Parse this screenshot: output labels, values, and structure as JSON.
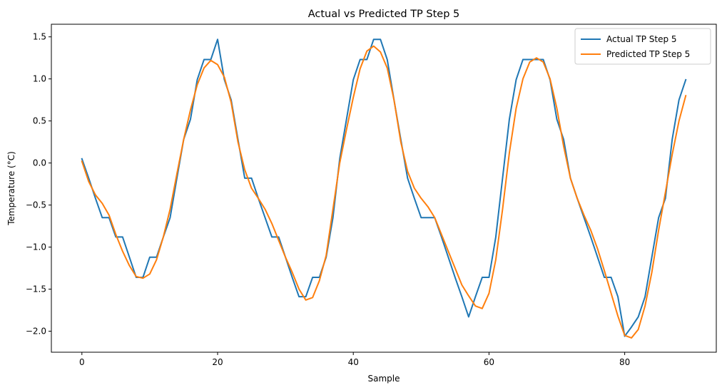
{
  "chart_data": {
    "type": "line",
    "title": "Actual vs Predicted TP Step 5",
    "xlabel": "Sample",
    "ylabel": "Temperature (°C)",
    "xlim": [
      -4.5,
      93.5
    ],
    "ylim": [
      -2.25,
      1.65
    ],
    "xticks": [
      0,
      20,
      40,
      60,
      80
    ],
    "yticks": [
      -2.0,
      -1.5,
      -1.0,
      -0.5,
      0.0,
      0.5,
      1.0,
      1.5
    ],
    "ytick_labels": [
      "−2.0",
      "−1.5",
      "−1.0",
      "−0.5",
      "0.0",
      "0.5",
      "1.0",
      "1.5"
    ],
    "grid": false,
    "legend_position": "top-right",
    "series": [
      {
        "name": "Actual TP Step 5",
        "color": "#1f77b4",
        "values": [
          0.05,
          -0.18,
          -0.42,
          -0.65,
          -0.65,
          -0.88,
          -0.88,
          -1.12,
          -1.36,
          -1.36,
          -1.12,
          -1.12,
          -0.88,
          -0.65,
          -0.18,
          0.28,
          0.52,
          0.99,
          1.23,
          1.23,
          1.47,
          0.99,
          0.75,
          0.28,
          -0.18,
          -0.18,
          -0.42,
          -0.65,
          -0.88,
          -0.88,
          -1.12,
          -1.36,
          -1.59,
          -1.59,
          -1.36,
          -1.36,
          -1.12,
          -0.65,
          0.05,
          0.52,
          0.99,
          1.23,
          1.23,
          1.47,
          1.47,
          1.23,
          0.75,
          0.28,
          -0.18,
          -0.42,
          -0.65,
          -0.65,
          -0.65,
          -0.88,
          -1.12,
          -1.36,
          -1.59,
          -1.83,
          -1.59,
          -1.36,
          -1.36,
          -0.88,
          -0.18,
          0.52,
          0.99,
          1.23,
          1.23,
          1.23,
          1.23,
          0.99,
          0.52,
          0.28,
          -0.18,
          -0.42,
          -0.65,
          -0.88,
          -1.12,
          -1.36,
          -1.36,
          -1.59,
          -2.06,
          -1.95,
          -1.83,
          -1.59,
          -1.12,
          -0.65,
          -0.42,
          0.28,
          0.75,
          0.99
        ]
      },
      {
        "name": "Predicted TP Step 5",
        "color": "#ff7f0e",
        "values": [
          0.02,
          -0.22,
          -0.38,
          -0.48,
          -0.62,
          -0.85,
          -1.05,
          -1.22,
          -1.35,
          -1.37,
          -1.32,
          -1.15,
          -0.88,
          -0.55,
          -0.13,
          0.28,
          0.63,
          0.93,
          1.13,
          1.22,
          1.17,
          1.02,
          0.72,
          0.25,
          -0.08,
          -0.3,
          -0.42,
          -0.55,
          -0.72,
          -0.92,
          -1.12,
          -1.3,
          -1.5,
          -1.63,
          -1.6,
          -1.4,
          -1.1,
          -0.55,
          0.0,
          0.4,
          0.78,
          1.12,
          1.33,
          1.39,
          1.32,
          1.13,
          0.75,
          0.25,
          -0.1,
          -0.3,
          -0.42,
          -0.52,
          -0.65,
          -0.85,
          -1.05,
          -1.25,
          -1.45,
          -1.58,
          -1.7,
          -1.73,
          -1.55,
          -1.15,
          -0.55,
          0.12,
          0.65,
          1.0,
          1.2,
          1.25,
          1.2,
          1.0,
          0.65,
          0.2,
          -0.18,
          -0.42,
          -0.62,
          -0.8,
          -1.02,
          -1.28,
          -1.55,
          -1.82,
          -2.05,
          -2.08,
          -1.98,
          -1.7,
          -1.3,
          -0.8,
          -0.35,
          0.1,
          0.5,
          0.8
        ]
      }
    ]
  }
}
